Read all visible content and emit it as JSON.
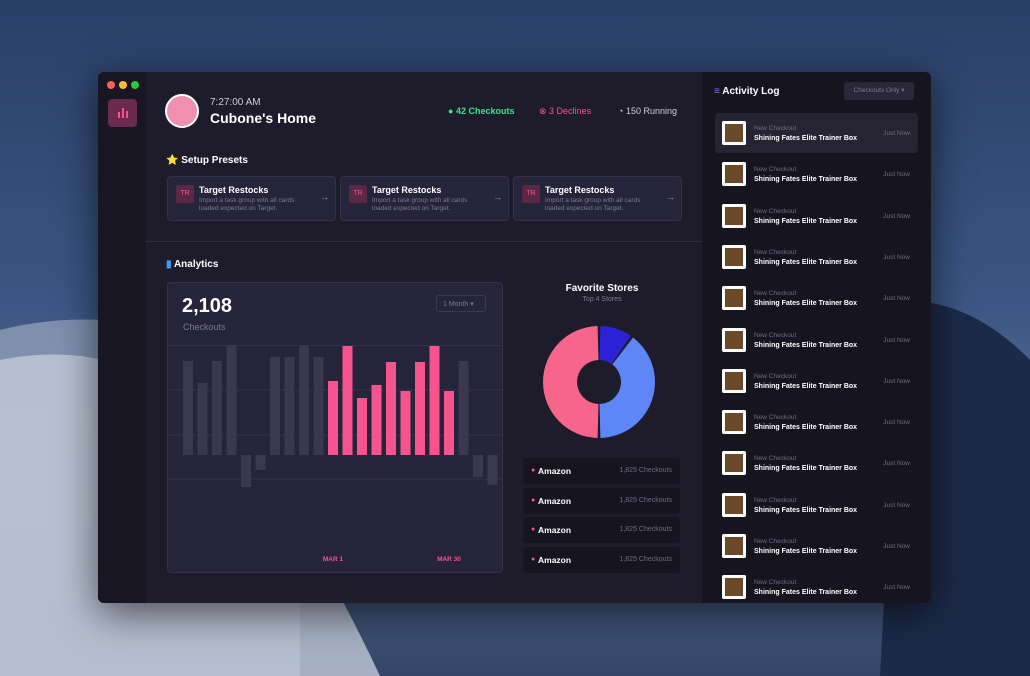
{
  "header": {
    "time": "7:27:00 AM",
    "title": "Cubone's Home",
    "stats": [
      "42 Checkouts",
      "3 Declines",
      "150 Running"
    ]
  },
  "presets": {
    "title": "Setup Presets",
    "cards": [
      {
        "badge": "TR",
        "title": "Target Restocks",
        "text": "Import a task group with all cards loaded expected on Target."
      },
      {
        "badge": "TR",
        "title": "Target Restocks",
        "text": "Import a task group with all cards loaded expected on Target."
      },
      {
        "badge": "TR",
        "title": "Target Restocks",
        "text": "Import a task group with all cards loaded expected on Target."
      }
    ]
  },
  "analytics": {
    "title": "Analytics",
    "total": "2,108",
    "total_label": "Checkouts",
    "period": "1 Month"
  },
  "chart_data": [
    {
      "type": "bar",
      "categories": [
        null,
        null,
        null,
        null,
        null,
        null,
        null,
        null,
        null,
        null,
        "MAR 1",
        null,
        null,
        null,
        null,
        null,
        null,
        null,
        "MAR 30",
        null,
        null,
        null
      ],
      "values": [
        94,
        72,
        94,
        141,
        -32,
        -15,
        98,
        98,
        128,
        98,
        74,
        128,
        57,
        70,
        93,
        64,
        93,
        117,
        64,
        94,
        -22,
        -30
      ],
      "colors": [
        "#3a3750",
        "#3a3750",
        "#3a3750",
        "#3a3750",
        "#3a3750",
        "#3a3750",
        "#3a3750",
        "#3a3750",
        "#3a3750",
        "#3a3750",
        "#f7538f",
        "#f7538f",
        "#f7538f",
        "#f7538f",
        "#f7538f",
        "#f7538f",
        "#f7538f",
        "#f7538f",
        "#f7538f",
        "#3a3750",
        "#3a3750",
        "#3a3750"
      ]
    },
    {
      "type": "pie",
      "title": "Favorite Stores",
      "subtitle": "Top 4 Stores",
      "values": [
        10,
        40,
        50
      ],
      "colors": [
        "#2d22d8",
        "#5f86f7",
        "#f7668a"
      ]
    }
  ],
  "stores": [
    {
      "name": "Amazon",
      "count": "1,825 Checkouts"
    },
    {
      "name": "Amazon",
      "count": "1,825 Checkouts"
    },
    {
      "name": "Amazon",
      "count": "1,825 Checkouts"
    },
    {
      "name": "Amazon",
      "count": "1,825 Checkouts"
    }
  ],
  "activity": {
    "title": "Activity Log",
    "filter": "Checkouts Only",
    "items": [
      {
        "label": "New Checkout",
        "product": "Shining Fates Elite Trainer Box",
        "time": "Just Now"
      },
      {
        "label": "New Checkout",
        "product": "Shining Fates Elite Trainer Box",
        "time": "Just Now"
      },
      {
        "label": "New Checkout",
        "product": "Shining Fates Elite Trainer Box",
        "time": "Just Now"
      },
      {
        "label": "New Checkout",
        "product": "Shining Fates Elite Trainer Box",
        "time": "Just Now"
      },
      {
        "label": "New Checkout",
        "product": "Shining Fates Elite Trainer Box",
        "time": "Just Now"
      },
      {
        "label": "New Checkout",
        "product": "Shining Fates Elite Trainer Box",
        "time": "Just Now"
      },
      {
        "label": "New Checkout",
        "product": "Shining Fates Elite Trainer Box",
        "time": "Just Now"
      },
      {
        "label": "New Checkout",
        "product": "Shining Fates Elite Trainer Box",
        "time": "Just Now"
      },
      {
        "label": "New Checkout",
        "product": "Shining Fates Elite Trainer Box",
        "time": "Just Now"
      },
      {
        "label": "New Checkout",
        "product": "Shining Fates Elite Trainer Box",
        "time": "Just Now"
      },
      {
        "label": "New Checkout",
        "product": "Shining Fates Elite Trainer Box",
        "time": "Just Now"
      },
      {
        "label": "New Checkout",
        "product": "Shining Fates Elite Trainer Box",
        "time": "Just Now"
      }
    ]
  }
}
